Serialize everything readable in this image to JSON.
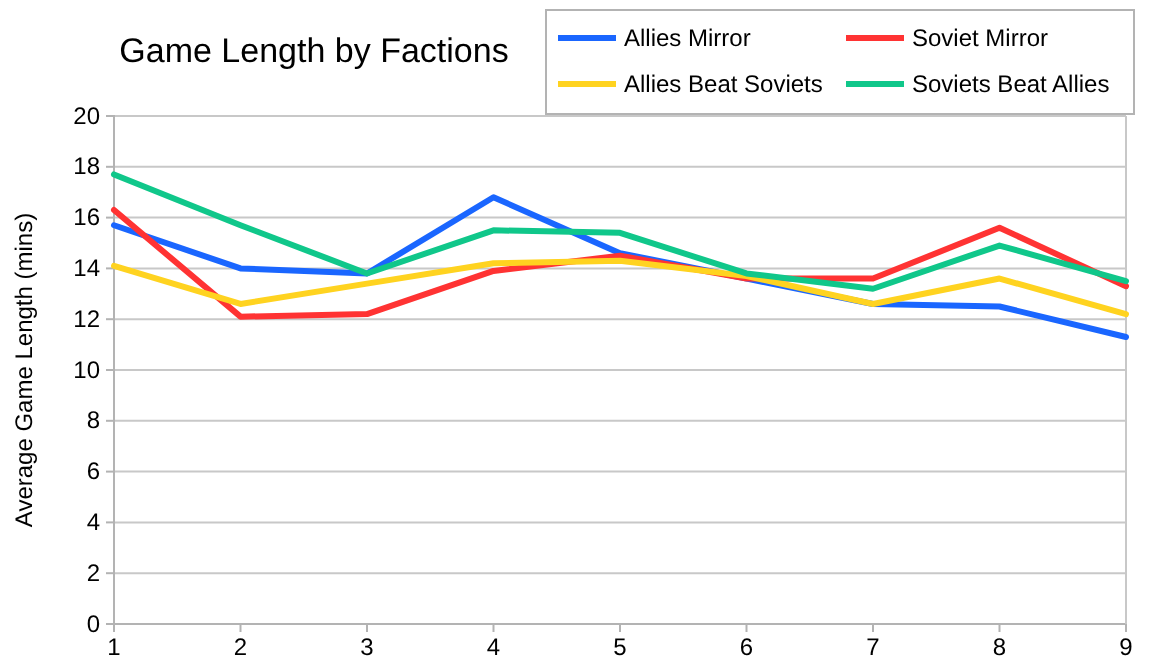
{
  "chart_data": {
    "type": "line",
    "title": "Game Length by Factions",
    "ylabel": "Average Game Length (mins)",
    "x": [
      1,
      2,
      3,
      4,
      5,
      6,
      7,
      8,
      9
    ],
    "series": [
      {
        "name": "Allies Mirror",
        "color": "#1a66ff",
        "values": [
          15.7,
          14.0,
          13.8,
          16.8,
          14.6,
          13.6,
          12.6,
          12.5,
          11.3
        ]
      },
      {
        "name": "Soviet Mirror",
        "color": "#ff3333",
        "values": [
          16.3,
          12.1,
          12.2,
          13.9,
          14.5,
          13.6,
          13.6,
          15.6,
          13.3
        ]
      },
      {
        "name": "Allies Beat Soviets",
        "color": "#ffd320",
        "values": [
          14.1,
          12.6,
          13.4,
          14.2,
          14.3,
          13.7,
          12.6,
          13.6,
          12.2
        ]
      },
      {
        "name": "Soviets Beat Allies",
        "color": "#10c78a",
        "values": [
          17.7,
          15.7,
          13.8,
          15.5,
          15.4,
          13.8,
          13.2,
          14.9,
          13.5
        ]
      }
    ],
    "xlim": [
      1,
      9
    ],
    "xticks": [
      1,
      2,
      3,
      4,
      5,
      6,
      7,
      8,
      9
    ],
    "ylim": [
      0,
      20
    ],
    "yticks": [
      0,
      2,
      4,
      6,
      8,
      10,
      12,
      14,
      16,
      18,
      20
    ],
    "grid": "y",
    "legend": "top right",
    "marker": "none",
    "line_style": "solid"
  }
}
